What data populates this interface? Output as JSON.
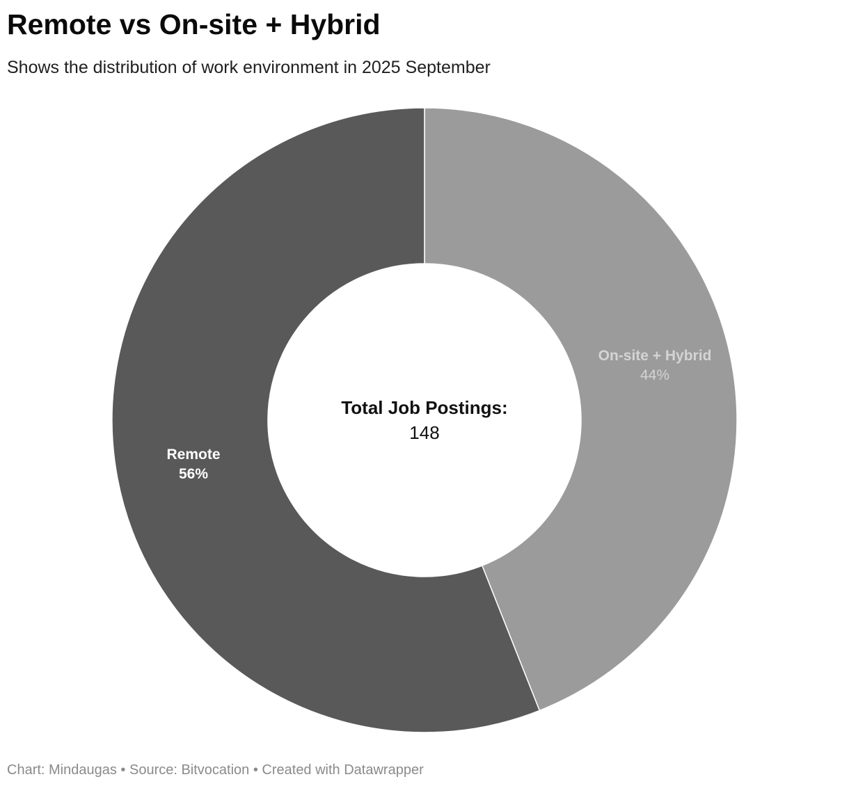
{
  "title": "Remote vs On-site + Hybrid",
  "subtitle": "Shows the distribution of work environment in 2025 September",
  "footer": "Chart: Mindaugas • Source: Bitvocation • Created with Datawrapper",
  "chart_data": {
    "type": "pie",
    "center_label": {
      "title": "Total Job Postings:",
      "value": "148"
    },
    "slices": [
      {
        "label": "On-site + Hybrid",
        "value": 44,
        "display": "44%",
        "color": "#9b9b9b"
      },
      {
        "label": "Remote",
        "value": 56,
        "display": "56%",
        "color": "#595959"
      }
    ]
  }
}
